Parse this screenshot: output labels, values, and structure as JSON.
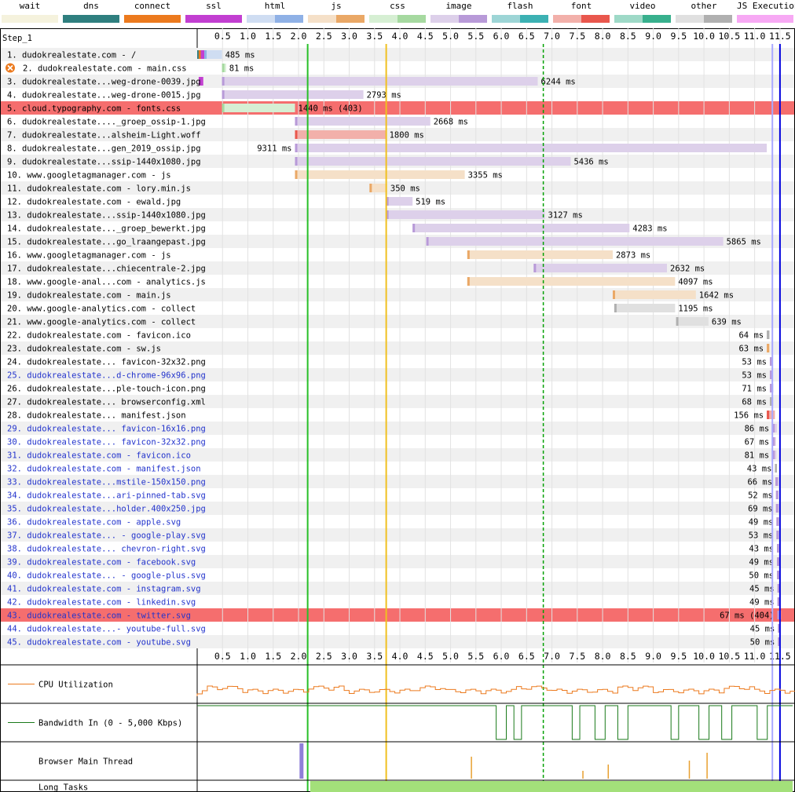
{
  "legend": [
    {
      "label": "wait",
      "c1": "#f5f2dd",
      "c2": "#f5f2dd"
    },
    {
      "label": "dns",
      "c1": "#2f7f7f",
      "c2": "#2f7f7f"
    },
    {
      "label": "connect",
      "c1": "#ec7a1e",
      "c2": "#ec7a1e"
    },
    {
      "label": "ssl",
      "c1": "#c23fd1",
      "c2": "#c23fd1"
    },
    {
      "label": "html",
      "c1": "#cfddf2",
      "c2": "#8fb1e6"
    },
    {
      "label": "js",
      "c1": "#f5e0c8",
      "c2": "#eaa866"
    },
    {
      "label": "css",
      "c1": "#d6efd3",
      "c2": "#a6d9a0"
    },
    {
      "label": "image",
      "c1": "#ddd0ea",
      "c2": "#b89ad8"
    },
    {
      "label": "flash",
      "c1": "#9dd5d6",
      "c2": "#3cb1b3"
    },
    {
      "label": "font",
      "c1": "#f2b0aa",
      "c2": "#e9574d"
    },
    {
      "label": "video",
      "c1": "#9ed9c7",
      "c2": "#38b08d"
    },
    {
      "label": "other",
      "c1": "#e0e0e0",
      "c2": "#b0b0b0"
    },
    {
      "label": "JS Execution",
      "c1": "#f7a9f4",
      "c2": "#f7a9f4"
    }
  ],
  "chart_data": {
    "type": "waterfall",
    "step": "Step_1",
    "x_ticks": [
      "0.5",
      "1.0",
      "1.5",
      "2.0",
      "2.5",
      "3.0",
      "3.5",
      "4.0",
      "4.5",
      "5.0",
      "5.5",
      "6.0",
      "6.5",
      "7.0",
      "7.5",
      "8.0",
      "8.5",
      "9.0",
      "9.5",
      "10.0",
      "10.5",
      "11.0",
      "11.5"
    ],
    "x_max_seconds": 11.75,
    "markers": {
      "start_render": 2.18,
      "dom_interactive": 3.73,
      "dom_content_loaded": 6.83,
      "onload": 11.35,
      "document_complete": 11.5
    },
    "requests": [
      {
        "label": "1. dudokrealestate.com - /",
        "time": "485 ms",
        "type": "html",
        "wait": [
          0,
          0
        ],
        "dns": [
          0,
          0.03
        ],
        "connect": [
          0.03,
          0.07
        ],
        "ssl": [
          0.07,
          0.14
        ],
        "start": 0.14,
        "end": 0.49,
        "color": "normal"
      },
      {
        "label": "2. dudokrealestate.com - main.css",
        "time": "81 ms",
        "type": "css",
        "wait": [
          0,
          0
        ],
        "start": 0.49,
        "end": 0.57,
        "color": "error-icon"
      },
      {
        "label": "3. dudokrealestate...weg-drone-0039.jpg",
        "time": "6244 ms",
        "type": "image",
        "ssl": [
          0.03,
          0.12
        ],
        "start": 0.49,
        "end": 6.72,
        "color": "normal"
      },
      {
        "label": "4. dudokrealestate...weg-drone-0015.jpg",
        "time": "2793 ms",
        "type": "image",
        "start": 0.49,
        "end": 3.28,
        "color": "normal"
      },
      {
        "label": "5. cloud.typography.com - fonts.css",
        "time": "1440 ms (403)",
        "type": "css",
        "start": 0.49,
        "end": 1.93,
        "color": "error"
      },
      {
        "label": "6. dudokrealestate...._groep_ossip-1.jpg",
        "time": "2668 ms",
        "type": "image",
        "start": 1.93,
        "end": 4.6,
        "color": "normal"
      },
      {
        "label": "7. dudokrealestate...alsheim-Light.woff",
        "time": "1800 ms",
        "type": "font",
        "start": 1.93,
        "end": 3.73,
        "color": "normal"
      },
      {
        "label": "8. dudokrealestate...gen_2019_ossip.jpg",
        "time": "9311 ms",
        "type": "image",
        "start": 1.93,
        "end": 11.24,
        "color": "normal"
      },
      {
        "label": "9. dudokrealestate...ssip-1440x1080.jpg",
        "time": "5436 ms",
        "type": "image",
        "start": 1.93,
        "end": 7.37,
        "color": "normal"
      },
      {
        "label": "10. www.googletagmanager.com - js",
        "time": "3355 ms",
        "type": "js",
        "start": 1.93,
        "end": 5.28,
        "color": "normal"
      },
      {
        "label": "11. dudokrealestate.com - lory.min.js",
        "time": "350 ms",
        "type": "js",
        "start": 3.4,
        "end": 3.75,
        "color": "normal"
      },
      {
        "label": "12. dudokrealestate.com - ewald.jpg",
        "time": "519 ms",
        "type": "image",
        "start": 3.73,
        "end": 4.25,
        "color": "normal"
      },
      {
        "label": "13. dudokrealestate...ssip-1440x1080.jpg",
        "time": "3127 ms",
        "type": "image",
        "start": 3.73,
        "end": 6.86,
        "color": "normal"
      },
      {
        "label": "14. dudokrealestate..._groep_bewerkt.jpg",
        "time": "4283 ms",
        "type": "image",
        "start": 4.25,
        "end": 8.53,
        "color": "normal"
      },
      {
        "label": "15. dudokrealestate...go_lraangepast.jpg",
        "time": "5865 ms",
        "type": "image",
        "start": 4.52,
        "end": 10.38,
        "color": "normal"
      },
      {
        "label": "16. www.googletagmanager.com - js",
        "time": "2873 ms",
        "type": "js",
        "start": 5.33,
        "end": 8.2,
        "color": "normal"
      },
      {
        "label": "17. dudokrealestate...chiecentrale-2.jpg",
        "time": "2632 ms",
        "type": "image",
        "start": 6.64,
        "end": 9.27,
        "color": "normal"
      },
      {
        "label": "18. www.google-anal...com - analytics.js",
        "time": "4097 ms",
        "type": "js",
        "start": 5.33,
        "end": 9.43,
        "color": "normal"
      },
      {
        "label": "19. dudokrealestate.com - main.js",
        "time": "1642 ms",
        "type": "js",
        "start": 8.2,
        "end": 9.84,
        "color": "normal"
      },
      {
        "label": "20. www.google-analytics.com - collect",
        "time": "1195 ms",
        "type": "other",
        "start": 8.23,
        "end": 9.43,
        "color": "normal"
      },
      {
        "label": "21. www.google-analytics.com - collect",
        "time": "639 ms",
        "type": "other",
        "start": 9.45,
        "end": 10.09,
        "color": "normal"
      },
      {
        "label": "22. dudokrealestate.com - favicon.ico",
        "time": "64 ms",
        "type": "other",
        "start": 11.24,
        "end": 11.3,
        "color": "normal"
      },
      {
        "label": "23. dudokrealestate.com - sw.js",
        "time": "63 ms",
        "type": "js",
        "start": 11.24,
        "end": 11.3,
        "color": "normal"
      },
      {
        "label": "24. dudokrealestate... favicon-32x32.png",
        "time": "53 ms",
        "type": "image",
        "start": 11.3,
        "end": 11.35,
        "color": "normal"
      },
      {
        "label": "25. dudokrealestate...d-chrome-96x96.png",
        "time": "53 ms",
        "type": "image",
        "start": 11.3,
        "end": 11.35,
        "color": "blue"
      },
      {
        "label": "26. dudokrealestate...ple-touch-icon.png",
        "time": "71 ms",
        "type": "image",
        "start": 11.3,
        "end": 11.37,
        "color": "normal"
      },
      {
        "label": "27. dudokrealestate... browserconfig.xml",
        "time": "68 ms",
        "type": "other",
        "start": 11.3,
        "end": 11.37,
        "color": "normal"
      },
      {
        "label": "28. dudokrealestate... manifest.json",
        "time": "156 ms",
        "type": "font",
        "start": 11.24,
        "end": 11.4,
        "color": "normal"
      },
      {
        "label": "29. dudokrealestate... favicon-16x16.png",
        "time": "86 ms",
        "type": "image",
        "start": 11.35,
        "end": 11.44,
        "color": "blue"
      },
      {
        "label": "30. dudokrealestate... favicon-32x32.png",
        "time": "67 ms",
        "type": "image",
        "start": 11.35,
        "end": 11.42,
        "color": "blue"
      },
      {
        "label": "31. dudokrealestate.com - favicon.ico",
        "time": "81 ms",
        "type": "image",
        "start": 11.35,
        "end": 11.43,
        "color": "blue"
      },
      {
        "label": "32. dudokrealestate.com - manifest.json",
        "time": "43 ms",
        "type": "other",
        "start": 11.4,
        "end": 11.44,
        "color": "blue"
      },
      {
        "label": "33. dudokrealestate...mstile-150x150.png",
        "time": "66 ms",
        "type": "image",
        "start": 11.41,
        "end": 11.48,
        "color": "blue"
      },
      {
        "label": "34. dudokrealestate...ari-pinned-tab.svg",
        "time": "52 ms",
        "type": "image",
        "start": 11.42,
        "end": 11.47,
        "color": "blue"
      },
      {
        "label": "35. dudokrealestate...holder.400x250.jpg",
        "time": "69 ms",
        "type": "image",
        "start": 11.42,
        "end": 11.49,
        "color": "blue"
      },
      {
        "label": "36. dudokrealestate.com - apple.svg",
        "time": "49 ms",
        "type": "image",
        "start": 11.43,
        "end": 11.48,
        "color": "blue"
      },
      {
        "label": "37. dudokrealestate... - google-play.svg",
        "time": "53 ms",
        "type": "image",
        "start": 11.43,
        "end": 11.48,
        "color": "blue"
      },
      {
        "label": "38. dudokrealestate... chevron-right.svg",
        "time": "43 ms",
        "type": "image",
        "start": 11.44,
        "end": 11.48,
        "color": "blue"
      },
      {
        "label": "39. dudokrealestate.com - facebook.svg",
        "time": "49 ms",
        "type": "image",
        "start": 11.44,
        "end": 11.49,
        "color": "blue"
      },
      {
        "label": "40. dudokrealestate... - google-plus.svg",
        "time": "50 ms",
        "type": "image",
        "start": 11.44,
        "end": 11.49,
        "color": "blue"
      },
      {
        "label": "41. dudokrealestate.com - instagram.svg",
        "time": "45 ms",
        "type": "image",
        "start": 11.45,
        "end": 11.49,
        "color": "blue"
      },
      {
        "label": "42. dudokrealestate.com - linkedin.svg",
        "time": "49 ms",
        "type": "image",
        "start": 11.45,
        "end": 11.5,
        "color": "blue"
      },
      {
        "label": "43. dudokrealestate.com - twitter.svg",
        "time": "67 ms (404)",
        "type": "image",
        "start": 11.45,
        "end": 11.52,
        "color": "error-blue"
      },
      {
        "label": "44. dudokrealestate...- youtube-full.svg",
        "time": "45 ms",
        "type": "image",
        "start": 11.46,
        "end": 11.5,
        "color": "blue"
      },
      {
        "label": "45. dudokrealestate.com - youtube.svg",
        "time": "50 ms",
        "type": "image",
        "start": 11.46,
        "end": 11.51,
        "color": "blue"
      }
    ],
    "bottom_panels": [
      "CPU Utilization",
      "Bandwidth In (0 - 5,000 Kbps)",
      "Browser Main Thread",
      "Long Tasks"
    ]
  }
}
